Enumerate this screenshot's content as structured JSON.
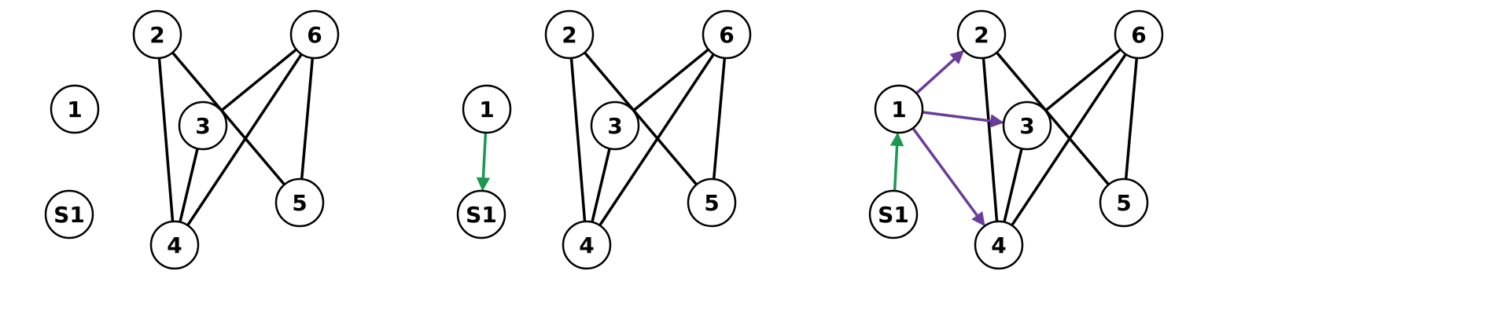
{
  "panels": [
    {
      "id": "panel-1",
      "nodes": [
        "1",
        "S1",
        "2",
        "3",
        "4",
        "5",
        "6"
      ],
      "edges": [
        [
          "2",
          "4"
        ],
        [
          "2",
          "5"
        ],
        [
          "6",
          "3"
        ],
        [
          "6",
          "4"
        ],
        [
          "6",
          "5"
        ],
        [
          "3",
          "4"
        ]
      ],
      "arrows": []
    },
    {
      "id": "panel-2",
      "nodes": [
        "1",
        "S1",
        "2",
        "3",
        "4",
        "5",
        "6"
      ],
      "edges": [
        [
          "2",
          "4"
        ],
        [
          "2",
          "5"
        ],
        [
          "6",
          "3"
        ],
        [
          "6",
          "4"
        ],
        [
          "6",
          "5"
        ],
        [
          "3",
          "4"
        ]
      ],
      "arrows": [
        {
          "from": "1",
          "to": "S1",
          "color": "green"
        }
      ]
    },
    {
      "id": "panel-3",
      "nodes": [
        "1",
        "S1",
        "2",
        "3",
        "4",
        "5",
        "6"
      ],
      "edges": [
        [
          "2",
          "4"
        ],
        [
          "2",
          "5"
        ],
        [
          "6",
          "3"
        ],
        [
          "6",
          "4"
        ],
        [
          "6",
          "5"
        ],
        [
          "3",
          "4"
        ]
      ],
      "arrows": [
        {
          "from": "S1",
          "to": "1",
          "color": "green"
        },
        {
          "from": "1",
          "to": "2",
          "color": "purple"
        },
        {
          "from": "1",
          "to": "3",
          "color": "purple"
        },
        {
          "from": "1",
          "to": "4",
          "color": "purple"
        }
      ]
    }
  ],
  "colors": {
    "green": "#1a9850",
    "purple": "#6a3d9a",
    "edge": "#000000",
    "node_fill": "#ffffff"
  }
}
